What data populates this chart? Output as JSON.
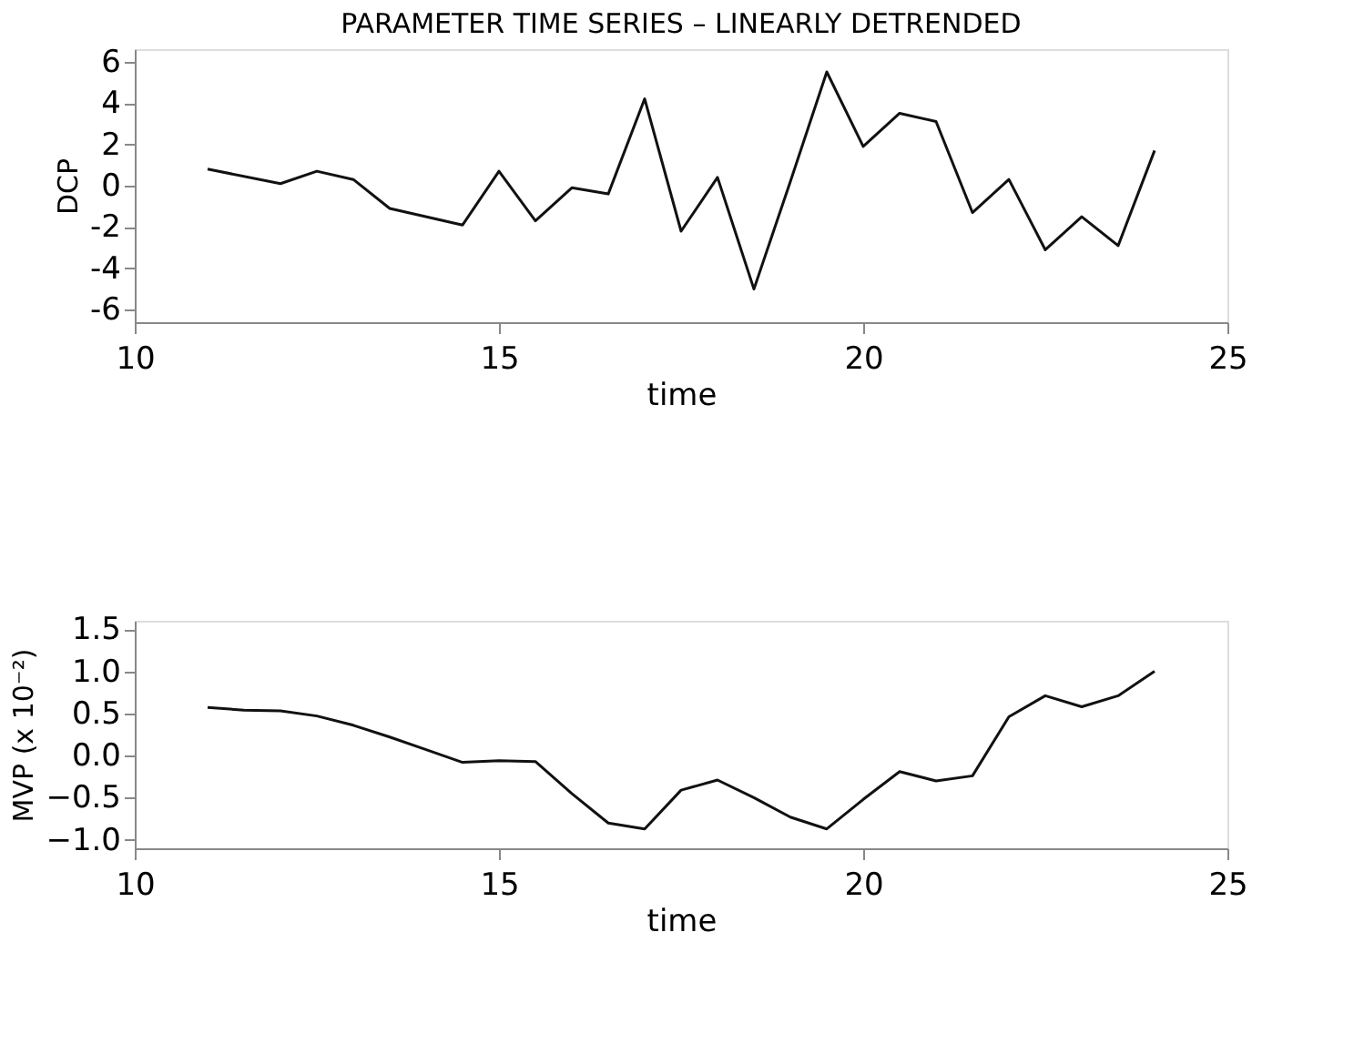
{
  "chart_data": [
    {
      "type": "line",
      "title": "PARAMETER TIME SERIES – LINEARLY DETRENDED",
      "xlabel": "time",
      "ylabel": "DCP",
      "xlim": [
        10,
        25
      ],
      "xticks": [
        10,
        15,
        20,
        25
      ],
      "ylim": [
        -6.6,
        6.6
      ],
      "yticks": [
        -6,
        -4,
        -2,
        0,
        2,
        4,
        6
      ],
      "grid": false,
      "series": [
        {
          "color": "#111111",
          "x": [
            11,
            12,
            12.5,
            13,
            13.5,
            14.5,
            15,
            15.5,
            16,
            16.5,
            17,
            17.5,
            18,
            18.5,
            19,
            19.5,
            20,
            20.5,
            21,
            21.5,
            22,
            22.5,
            23,
            23.5,
            24
          ],
          "values": [
            0.8,
            0.1,
            0.7,
            0.3,
            -1.1,
            -1.9,
            0.7,
            -1.7,
            -0.1,
            -0.4,
            4.2,
            -2.2,
            0.4,
            -5.0,
            0.2,
            5.5,
            1.9,
            3.5,
            3.1,
            -1.3,
            0.3,
            -3.1,
            -1.5,
            -2.9,
            1.7
          ]
        }
      ]
    },
    {
      "type": "line",
      "xlabel": "time",
      "ylabel": "MVP  (x 10⁻²)",
      "xlim": [
        10,
        25
      ],
      "xticks": [
        10,
        15,
        20,
        25
      ],
      "ylim": [
        -1.1,
        1.6
      ],
      "yticks": [
        {
          "value": -1.0,
          "label": "−1.0"
        },
        {
          "value": -0.5,
          "label": "−0.5"
        },
        {
          "value": 0.0,
          "label": "0.0"
        },
        {
          "value": 0.5,
          "label": "0.5"
        },
        {
          "value": 1.0,
          "label": "1.0"
        },
        {
          "value": 1.5,
          "label": "1.5"
        }
      ],
      "grid": false,
      "series": [
        {
          "color": "#111111",
          "x": [
            11,
            11.5,
            12,
            12.5,
            13,
            13.5,
            14,
            14.5,
            15,
            15.5,
            16,
            16.5,
            17,
            17.5,
            18,
            18.5,
            19,
            19.5,
            20,
            20.5,
            21,
            21.5,
            22,
            22.5,
            23,
            23.5,
            24
          ],
          "values": [
            0.57,
            0.54,
            0.53,
            0.47,
            0.36,
            0.22,
            0.07,
            -0.08,
            -0.06,
            -0.07,
            -0.45,
            -0.8,
            -0.87,
            -0.41,
            -0.29,
            -0.5,
            -0.73,
            -0.87,
            -0.52,
            -0.19,
            -0.3,
            -0.24,
            0.46,
            0.71,
            0.58,
            0.71,
            1.0
          ]
        }
      ]
    }
  ]
}
